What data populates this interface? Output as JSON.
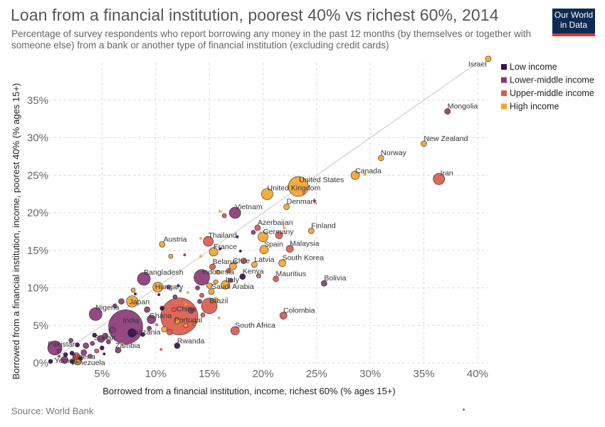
{
  "title": "Loan from a financial institution, poorest 40% vs richest 60%, 2014",
  "subtitle": "Percentage of survey respondents who report borrowing any money in the past 12 months (by themselves or together with someone else) from a bank or another type of financial institution (excluding credit cards)",
  "logo": {
    "line1": "Our World",
    "line2": "in Data"
  },
  "source": "Source: World Bank",
  "colors": {
    "Low income": "#3b0f55",
    "Lower-middle income": "#8b3a77",
    "Upper-middle income": "#dc5b4d",
    "High income": "#f3a52d"
  },
  "chart_data": {
    "type": "scatter",
    "title": "Loan from a financial institution, poorest 40% vs richest 60%, 2014",
    "xlabel": "Borrowed from a financial institution, income, richest 60% (% ages 15+)",
    "ylabel": "Borrowed from a financial institution, income, poorest 40% (% ages 15+)",
    "xlim": [
      0,
      41
    ],
    "ylim": [
      0,
      40
    ],
    "x_ticks": [
      "5%",
      "10%",
      "15%",
      "20%",
      "25%",
      "30%",
      "35%",
      "40%"
    ],
    "y_ticks": [
      "0%",
      "5%",
      "10%",
      "15%",
      "20%",
      "25%",
      "30%",
      "35%"
    ],
    "grid": true,
    "legend_position": "top-right",
    "legend": [
      "Low income",
      "Lower-middle income",
      "Upper-middle income",
      "High income"
    ],
    "reference_line": "y = x",
    "points": [
      {
        "label": "Israel",
        "x": 41.0,
        "y": 40.5,
        "group": "High income",
        "size": 4
      },
      {
        "label": "Mongolia",
        "x": 37.2,
        "y": 33.5,
        "group": "Lower-middle income",
        "size": 4
      },
      {
        "label": "New Zealand",
        "x": 35.0,
        "y": 29.2,
        "group": "High income",
        "size": 4
      },
      {
        "label": "Norway",
        "x": 31.0,
        "y": 27.3,
        "group": "High income",
        "size": 4
      },
      {
        "label": "Canada",
        "x": 28.6,
        "y": 25.0,
        "group": "High income",
        "size": 6
      },
      {
        "label": "Iran",
        "x": 36.4,
        "y": 24.5,
        "group": "Upper-middle income",
        "size": 8
      },
      {
        "label": "United States",
        "x": 23.3,
        "y": 23.5,
        "group": "High income",
        "size": 14
      },
      {
        "label": "United Kingdom",
        "x": 20.4,
        "y": 22.5,
        "group": "High income",
        "size": 8
      },
      {
        "label": "Denmark",
        "x": 22.2,
        "y": 20.8,
        "group": "High income",
        "size": 4
      },
      {
        "label": "Vietnam",
        "x": 17.4,
        "y": 20.0,
        "group": "Lower-middle income",
        "size": 8
      },
      {
        "label": "Finland",
        "x": 24.5,
        "y": 17.6,
        "group": "High income",
        "size": 4
      },
      {
        "label": "Azerbaijan",
        "x": 19.5,
        "y": 18.0,
        "group": "Upper-middle income",
        "size": 4
      },
      {
        "label": "Germany",
        "x": 20.0,
        "y": 16.8,
        "group": "High income",
        "size": 7
      },
      {
        "label": "Thailand",
        "x": 14.9,
        "y": 16.2,
        "group": "Upper-middle income",
        "size": 7
      },
      {
        "label": "Austria",
        "x": 10.6,
        "y": 15.8,
        "group": "High income",
        "size": 4
      },
      {
        "label": "Spain",
        "x": 20.1,
        "y": 15.1,
        "group": "High income",
        "size": 6
      },
      {
        "label": "Malaysia",
        "x": 22.5,
        "y": 15.2,
        "group": "Upper-middle income",
        "size": 5
      },
      {
        "label": "France",
        "x": 15.4,
        "y": 14.8,
        "group": "High income",
        "size": 6
      },
      {
        "label": "Latvia",
        "x": 19.2,
        "y": 13.1,
        "group": "High income",
        "size": 4
      },
      {
        "label": "South Korea",
        "x": 21.8,
        "y": 13.3,
        "group": "High income",
        "size": 5
      },
      {
        "label": "Belarus",
        "x": 15.3,
        "y": 12.8,
        "group": "Upper-middle income",
        "size": 4
      },
      {
        "label": "Chile",
        "x": 17.2,
        "y": 12.9,
        "group": "High income",
        "size": 5
      },
      {
        "label": "Indonesia",
        "x": 14.3,
        "y": 11.4,
        "group": "Lower-middle income",
        "size": 11
      },
      {
        "label": "Bangladesh",
        "x": 8.9,
        "y": 11.2,
        "group": "Lower-middle income",
        "size": 9
      },
      {
        "label": "Mauritius",
        "x": 21.2,
        "y": 11.2,
        "group": "Upper-middle income",
        "size": 4
      },
      {
        "label": "Kenya",
        "x": 18.1,
        "y": 11.5,
        "group": "Low income",
        "size": 4
      },
      {
        "label": "Bolivia",
        "x": 25.7,
        "y": 10.6,
        "group": "Lower-middle income",
        "size": 4
      },
      {
        "label": "Hungary",
        "x": 10.2,
        "y": 10.1,
        "group": "High income",
        "size": 7
      },
      {
        "label": "Italy",
        "x": 16.5,
        "y": 10.4,
        "group": "High income",
        "size": 6
      },
      {
        "label": "Saudi Arabia",
        "x": 15.2,
        "y": 9.5,
        "group": "High income",
        "size": 4
      },
      {
        "label": "Japan",
        "x": 7.8,
        "y": 8.2,
        "group": "High income",
        "size": 8
      },
      {
        "label": "Brazil",
        "x": 15.0,
        "y": 7.6,
        "group": "Upper-middle income",
        "size": 11
      },
      {
        "label": "Nigeria",
        "x": 4.4,
        "y": 6.5,
        "group": "Lower-middle income",
        "size": 9
      },
      {
        "label": "China",
        "x": 12.2,
        "y": 6.2,
        "group": "Upper-middle income",
        "size": 26
      },
      {
        "label": "Colombia",
        "x": 21.9,
        "y": 6.3,
        "group": "Upper-middle income",
        "size": 5
      },
      {
        "label": "India",
        "x": 7.2,
        "y": 4.8,
        "group": "Lower-middle income",
        "size": 24
      },
      {
        "label": "Ghana",
        "x": 9.6,
        "y": 5.8,
        "group": "Lower-middle income",
        "size": 6
      },
      {
        "label": "Portugal",
        "x": 12.0,
        "y": 5.6,
        "group": "High income",
        "size": 4
      },
      {
        "label": "Tanzania",
        "x": 7.8,
        "y": 4.0,
        "group": "Low income",
        "size": 6
      },
      {
        "label": "South Africa",
        "x": 17.4,
        "y": 4.3,
        "group": "Upper-middle income",
        "size": 6
      },
      {
        "label": "Sudan",
        "x": 4.9,
        "y": 3.2,
        "group": "Lower-middle income",
        "size": 5
      },
      {
        "label": "Pakistan",
        "x": 0.6,
        "y": 2.0,
        "group": "Lower-middle income",
        "size": 10
      },
      {
        "label": "Rwanda",
        "x": 12.0,
        "y": 2.3,
        "group": "Low income",
        "size": 4
      },
      {
        "label": "Zambia",
        "x": 6.5,
        "y": 1.7,
        "group": "Lower-middle income",
        "size": 4
      },
      {
        "label": "Algeria",
        "x": 2.6,
        "y": 0.9,
        "group": "Upper-middle income",
        "size": 5
      },
      {
        "label": "Yemen",
        "x": 1.5,
        "y": 0.4,
        "group": "Lower-middle income",
        "size": 5
      },
      {
        "label": "Venezuela",
        "x": 2.7,
        "y": 0.3,
        "group": "High income",
        "size": 6
      },
      {
        "label": "",
        "x": 16.0,
        "y": 20.2,
        "group": "High income",
        "size": 2
      },
      {
        "label": "",
        "x": 16.4,
        "y": 19.6,
        "group": "Upper-middle income",
        "size": 3
      },
      {
        "label": "",
        "x": 17.6,
        "y": 16.8,
        "group": "Low income",
        "size": 2
      },
      {
        "label": "",
        "x": 19.1,
        "y": 17.4,
        "group": "Lower-middle income",
        "size": 3
      },
      {
        "label": "",
        "x": 21.5,
        "y": 17.0,
        "group": "Upper-middle income",
        "size": 5
      },
      {
        "label": "",
        "x": 22.0,
        "y": 18.0,
        "group": "High income",
        "size": 2
      },
      {
        "label": "",
        "x": 23.8,
        "y": 22.6,
        "group": "Upper-middle income",
        "size": 2
      },
      {
        "label": "",
        "x": 24.8,
        "y": 21.6,
        "group": "Upper-middle income",
        "size": 2
      },
      {
        "label": "",
        "x": 29.5,
        "y": 25.1,
        "group": "High income",
        "size": 2
      },
      {
        "label": "",
        "x": 14.2,
        "y": 16.6,
        "group": "High income",
        "size": 2
      },
      {
        "label": "",
        "x": 16.0,
        "y": 15.2,
        "group": "Low income",
        "size": 2
      },
      {
        "label": "",
        "x": 12.7,
        "y": 14.4,
        "group": "Lower-middle income",
        "size": 2
      },
      {
        "label": "",
        "x": 14.2,
        "y": 14.2,
        "group": "High income",
        "size": 2
      },
      {
        "label": "",
        "x": 11.4,
        "y": 14.2,
        "group": "High income",
        "size": 3
      },
      {
        "label": "",
        "x": 17.9,
        "y": 14.9,
        "group": "Low income",
        "size": 2
      },
      {
        "label": "",
        "x": 18.2,
        "y": 13.6,
        "group": "Upper-middle income",
        "size": 4
      },
      {
        "label": "",
        "x": 16.8,
        "y": 12.3,
        "group": "Upper-middle income",
        "size": 3
      },
      {
        "label": "",
        "x": 15.8,
        "y": 12.1,
        "group": "High income",
        "size": 3
      },
      {
        "label": "",
        "x": 19.6,
        "y": 11.6,
        "group": "Upper-middle income",
        "size": 3
      },
      {
        "label": "",
        "x": 17.0,
        "y": 11.0,
        "group": "Lower-middle income",
        "size": 3
      },
      {
        "label": "",
        "x": 15.6,
        "y": 10.8,
        "group": "High income",
        "size": 3
      },
      {
        "label": "",
        "x": 15.0,
        "y": 10.3,
        "group": "High income",
        "size": 4
      },
      {
        "label": "",
        "x": 13.9,
        "y": 10.0,
        "group": "Lower-middle income",
        "size": 3
      },
      {
        "label": "",
        "x": 12.1,
        "y": 10.3,
        "group": "Low income",
        "size": 2
      },
      {
        "label": "",
        "x": 12.3,
        "y": 9.6,
        "group": "Upper-middle income",
        "size": 2
      },
      {
        "label": "",
        "x": 13.0,
        "y": 9.4,
        "group": "High income",
        "size": 2
      },
      {
        "label": "",
        "x": 11.2,
        "y": 10.1,
        "group": "Lower-middle income",
        "size": 3
      },
      {
        "label": "",
        "x": 14.3,
        "y": 9.0,
        "group": "Upper-middle income",
        "size": 3
      },
      {
        "label": "",
        "x": 10.3,
        "y": 9.1,
        "group": "Low income",
        "size": 2
      },
      {
        "label": "",
        "x": 11.8,
        "y": 8.8,
        "group": "Lower-middle income",
        "size": 3
      },
      {
        "label": "",
        "x": 14.1,
        "y": 8.2,
        "group": "Lower-middle income",
        "size": 3
      },
      {
        "label": "",
        "x": 12.8,
        "y": 7.8,
        "group": "High income",
        "size": 2
      },
      {
        "label": "",
        "x": 15.6,
        "y": 8.4,
        "group": "High income",
        "size": 3
      },
      {
        "label": "",
        "x": 8.1,
        "y": 9.2,
        "group": "Low income",
        "size": 2
      },
      {
        "label": "",
        "x": 7.9,
        "y": 9.7,
        "group": "High income",
        "size": 3
      },
      {
        "label": "",
        "x": 6.8,
        "y": 8.2,
        "group": "Lower-middle income",
        "size": 4
      },
      {
        "label": "",
        "x": 6.2,
        "y": 7.6,
        "group": "Lower-middle income",
        "size": 3
      },
      {
        "label": "",
        "x": 9.2,
        "y": 7.1,
        "group": "Lower-middle income",
        "size": 4
      },
      {
        "label": "",
        "x": 10.6,
        "y": 7.3,
        "group": "Low income",
        "size": 3
      },
      {
        "label": "",
        "x": 11.7,
        "y": 7.1,
        "group": "Upper-middle income",
        "size": 3
      },
      {
        "label": "",
        "x": 13.3,
        "y": 7.0,
        "group": "Lower-middle income",
        "size": 4
      },
      {
        "label": "",
        "x": 14.4,
        "y": 6.4,
        "group": "Upper-middle income",
        "size": 3
      },
      {
        "label": "",
        "x": 15.9,
        "y": 6.0,
        "group": "High income",
        "size": 2
      },
      {
        "label": "",
        "x": 13.6,
        "y": 5.3,
        "group": "High income",
        "size": 3
      },
      {
        "label": "",
        "x": 12.8,
        "y": 5.0,
        "group": "High income",
        "size": 3
      },
      {
        "label": "",
        "x": 10.1,
        "y": 5.1,
        "group": "Upper-middle income",
        "size": 2
      },
      {
        "label": "",
        "x": 10.8,
        "y": 4.5,
        "group": "High income",
        "size": 4
      },
      {
        "label": "",
        "x": 11.3,
        "y": 4.1,
        "group": "Upper-middle income",
        "size": 4
      },
      {
        "label": "",
        "x": 9.4,
        "y": 4.6,
        "group": "Lower-middle income",
        "size": 3
      },
      {
        "label": "",
        "x": 8.8,
        "y": 3.8,
        "group": "Low income",
        "size": 3
      },
      {
        "label": "",
        "x": 6.0,
        "y": 4.4,
        "group": "Lower-middle income",
        "size": 4
      },
      {
        "label": "",
        "x": 5.3,
        "y": 3.6,
        "group": "Lower-middle income",
        "size": 4
      },
      {
        "label": "",
        "x": 4.3,
        "y": 3.7,
        "group": "Low income",
        "size": 3
      },
      {
        "label": "",
        "x": 5.6,
        "y": 2.8,
        "group": "Lower-middle income",
        "size": 3
      },
      {
        "label": "",
        "x": 4.1,
        "y": 2.6,
        "group": "Lower-middle income",
        "size": 3
      },
      {
        "label": "",
        "x": 3.5,
        "y": 2.3,
        "group": "Lower-middle income",
        "size": 4
      },
      {
        "label": "",
        "x": 2.7,
        "y": 2.4,
        "group": "Low income",
        "size": 3
      },
      {
        "label": "",
        "x": 2.1,
        "y": 3.0,
        "group": "Lower-middle income",
        "size": 3
      },
      {
        "label": "",
        "x": 5.0,
        "y": 2.0,
        "group": "Low income",
        "size": 3
      },
      {
        "label": "",
        "x": 4.5,
        "y": 1.6,
        "group": "Upper-middle income",
        "size": 3
      },
      {
        "label": "",
        "x": 3.3,
        "y": 1.4,
        "group": "Lower-middle income",
        "size": 4
      },
      {
        "label": "",
        "x": 2.2,
        "y": 1.3,
        "group": "Low income",
        "size": 3
      },
      {
        "label": "",
        "x": 1.6,
        "y": 1.1,
        "group": "Low income",
        "size": 3
      },
      {
        "label": "",
        "x": 1.0,
        "y": 1.6,
        "group": "Lower-middle income",
        "size": 3
      },
      {
        "label": "",
        "x": 3.9,
        "y": 0.9,
        "group": "Upper-middle income",
        "size": 3
      },
      {
        "label": "",
        "x": 5.2,
        "y": 1.2,
        "group": "Low income",
        "size": 2
      },
      {
        "label": "",
        "x": 3.0,
        "y": 0.6,
        "group": "Low income",
        "size": 3
      },
      {
        "label": "",
        "x": 0.2,
        "y": 0.2,
        "group": "Low income",
        "size": 3
      },
      {
        "label": "",
        "x": 2.2,
        "y": 0.2,
        "group": "Low income",
        "size": 3
      },
      {
        "label": "",
        "x": 1.0,
        "y": 0.9,
        "group": "Lower-middle income",
        "size": 2
      },
      {
        "label": "",
        "x": 10.5,
        "y": 1.8,
        "group": "Upper-middle income",
        "size": 2
      },
      {
        "label": "",
        "x": 6.9,
        "y": 2.5,
        "group": "High income",
        "size": 2
      }
    ]
  }
}
